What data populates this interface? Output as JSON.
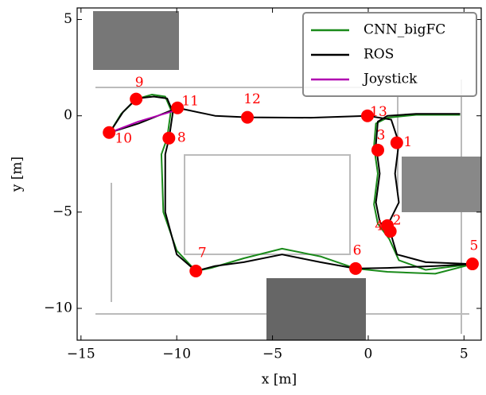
{
  "chart_data": {
    "type": "line",
    "xlabel": "x [m]",
    "ylabel": "y [m]",
    "xlim": [
      -15.2,
      5.9
    ],
    "ylim": [
      -11.65,
      5.6
    ],
    "xticks": [
      {
        "value": -15,
        "label": "−15"
      },
      {
        "value": -10,
        "label": "−10"
      },
      {
        "value": -5,
        "label": "−5"
      },
      0,
      5
    ],
    "yticks": [
      {
        "value": -10,
        "label": "−10"
      },
      {
        "value": -5,
        "label": "−5"
      },
      0,
      5
    ],
    "legend": "upper right",
    "series": [
      {
        "name": "CNN_bigFC",
        "color": "#1a8a1a",
        "x": [
          4.8,
          2.5,
          1.0,
          0.4,
          0.3,
          0.5,
          0.3,
          0.5,
          1.1,
          1.6,
          3.0,
          5.44,
          3.5,
          1.0,
          -0.66,
          -2.5,
          -4.5,
          -6.5,
          -8.2,
          -9.0,
          -10.0,
          -10.7,
          -10.8,
          -10.5,
          -10.3,
          -10.6,
          -11.3,
          -12.1,
          -12.9,
          -13.5
        ],
        "y": [
          0.05,
          0.05,
          -0.1,
          -0.4,
          -1.6,
          -3.0,
          -4.6,
          -5.6,
          -6.4,
          -7.5,
          -8.0,
          -7.7,
          -8.2,
          -8.1,
          -7.93,
          -7.3,
          -6.9,
          -7.4,
          -7.9,
          -8.06,
          -7.0,
          -5.0,
          -2.0,
          -1.16,
          0.3,
          1.0,
          1.1,
          0.87,
          0.1,
          -0.87
        ]
      },
      {
        "name": "ROS",
        "color": "#000000",
        "x": [
          4.8,
          2.5,
          1.0,
          0.5,
          0.4,
          0.6,
          0.4,
          0.6,
          1.2,
          1.5,
          3.0,
          5.44,
          3.5,
          1.0,
          -0.66,
          -2.5,
          -4.5,
          -6.5,
          -8.0,
          -9.0,
          -10.0,
          -10.6,
          -10.6,
          -10.4,
          -10.2,
          -10.5,
          -11.2,
          -12.1,
          -12.8,
          -13.5,
          -12.0,
          -9.96,
          -8.0,
          -6.3,
          -3.0,
          -0.04,
          1.2,
          1.6,
          1.4,
          1.6,
          1.0
        ],
        "y": [
          0.1,
          0.1,
          0.0,
          -0.3,
          -1.5,
          -3.0,
          -4.5,
          -5.5,
          -6.2,
          -7.2,
          -7.6,
          -7.7,
          -7.8,
          -7.9,
          -7.93,
          -7.6,
          -7.2,
          -7.6,
          -7.8,
          -8.06,
          -7.2,
          -5.0,
          -2.0,
          -1.16,
          0.2,
          0.9,
          1.0,
          0.9,
          0.2,
          -0.87,
          -0.4,
          0.41,
          0.0,
          -0.08,
          -0.1,
          0.0,
          -0.2,
          -1.4,
          -3.0,
          -4.5,
          -5.7
        ]
      },
      {
        "name": "Joystick",
        "color": "#b000b0",
        "x": [
          -13.5,
          -12.0,
          -10.0
        ],
        "y": [
          -0.87,
          -0.3,
          0.3
        ]
      }
    ],
    "waypoints": {
      "color": "#ff0000",
      "labels": [
        "1",
        "2",
        "3",
        "4",
        "5",
        "6",
        "7",
        "8",
        "9",
        "10",
        "11",
        "12",
        "13"
      ],
      "x": [
        1.49,
        1.0,
        0.5,
        1.15,
        5.44,
        -0.66,
        -9.0,
        -10.41,
        -12.12,
        -13.53,
        -9.96,
        -6.31,
        -0.04
      ],
      "y": [
        -1.4,
        -5.7,
        -1.78,
        -6.0,
        -7.69,
        -7.93,
        -8.06,
        -1.16,
        0.87,
        -0.87,
        0.41,
        -0.08,
        0.0
      ]
    }
  }
}
